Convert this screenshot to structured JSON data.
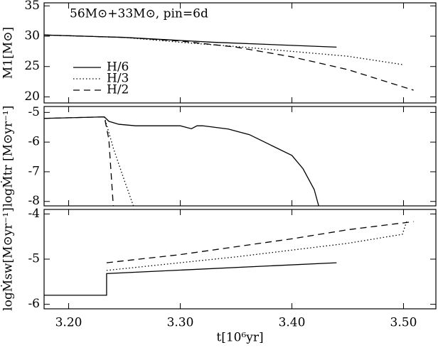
{
  "chart_data": [
    {
      "type": "line",
      "title": "56M⊙+33M⊙, pin=6d",
      "y_label": "M1[M⊙]",
      "xlim": [
        3.178,
        3.529
      ],
      "ylim": [
        19,
        35.5
      ],
      "yticks": [
        20,
        25,
        30,
        35
      ],
      "legend": "lower left",
      "series": [
        {
          "name": "H/6",
          "color": "#000000",
          "linestyle": "solid",
          "x": [
            3.178,
            3.25,
            3.33,
            3.44
          ],
          "values": [
            30.2,
            29.8,
            29.0,
            28.2
          ]
        },
        {
          "name": "H/3",
          "color": "#000000",
          "linestyle": "dotted",
          "x": [
            3.178,
            3.25,
            3.3,
            3.35,
            3.4,
            3.45,
            3.5
          ],
          "values": [
            30.2,
            29.8,
            29.0,
            28.3,
            27.5,
            26.7,
            25.3
          ]
        },
        {
          "name": "H/2",
          "color": "#000000",
          "linestyle": "dashed",
          "x": [
            3.178,
            3.25,
            3.3,
            3.35,
            3.4,
            3.45,
            3.509
          ],
          "values": [
            30.2,
            29.8,
            29.2,
            28.2,
            26.6,
            24.5,
            21.1
          ]
        }
      ]
    },
    {
      "type": "line",
      "y_label": "logṀtr [M⊙yr⁻¹]",
      "xlim": [
        3.178,
        3.529
      ],
      "ylim": [
        -8.15,
        -4.8
      ],
      "yticks": [
        -8,
        -7,
        -6,
        -5
      ],
      "series": [
        {
          "name": "H/6",
          "color": "#000000",
          "linestyle": "solid",
          "x": [
            3.178,
            3.232,
            3.236,
            3.245,
            3.26,
            3.3,
            3.31,
            3.315,
            3.32,
            3.343,
            3.362,
            3.381,
            3.4,
            3.41,
            3.42,
            3.424
          ],
          "values": [
            -5.2,
            -5.15,
            -5.3,
            -5.4,
            -5.45,
            -5.45,
            -5.55,
            -5.45,
            -5.45,
            -5.56,
            -5.75,
            -6.1,
            -6.45,
            -6.9,
            -7.6,
            -8.15
          ]
        },
        {
          "name": "H/3",
          "color": "#000000",
          "linestyle": "dotted",
          "x": [
            3.232,
            3.24,
            3.25,
            3.258
          ],
          "values": [
            -5.15,
            -6.2,
            -7.3,
            -8.15
          ]
        },
        {
          "name": "H/2",
          "color": "#000000",
          "linestyle": "dashed",
          "x": [
            3.178,
            3.232,
            3.236,
            3.24
          ],
          "values": [
            -5.2,
            -5.15,
            -5.9,
            -8.15
          ]
        }
      ]
    },
    {
      "type": "line",
      "x_label": "t[10⁶yr]",
      "y_label": "logṀsw[M⊙yr⁻¹]",
      "xlim": [
        3.178,
        3.529
      ],
      "ylim": [
        -6.1,
        -3.9
      ],
      "yticks": [
        -6,
        -5,
        -4
      ],
      "xticks": [
        {
          "value": 3.2,
          "label": "3.20"
        },
        {
          "value": 3.3,
          "label": "3.30"
        },
        {
          "value": 3.4,
          "label": "3.40"
        },
        {
          "value": 3.5,
          "label": "3.50"
        }
      ],
      "series": [
        {
          "name": "H/6",
          "color": "#000000",
          "linestyle": "solid",
          "x": [
            3.178,
            3.234,
            3.234,
            3.44
          ],
          "values": [
            -5.8,
            -5.8,
            -5.32,
            -5.08
          ]
        },
        {
          "name": "H/3",
          "color": "#000000",
          "linestyle": "dotted",
          "x": [
            3.234,
            3.35,
            3.45,
            3.499,
            3.503
          ],
          "values": [
            -5.25,
            -4.95,
            -4.65,
            -4.45,
            -4.15
          ]
        },
        {
          "name": "H/2",
          "color": "#000000",
          "linestyle": "dashed",
          "x": [
            3.234,
            3.3,
            3.4,
            3.45,
            3.476,
            3.509
          ],
          "values": [
            -5.08,
            -4.9,
            -4.55,
            -4.35,
            -4.27,
            -4.17
          ]
        }
      ]
    }
  ]
}
